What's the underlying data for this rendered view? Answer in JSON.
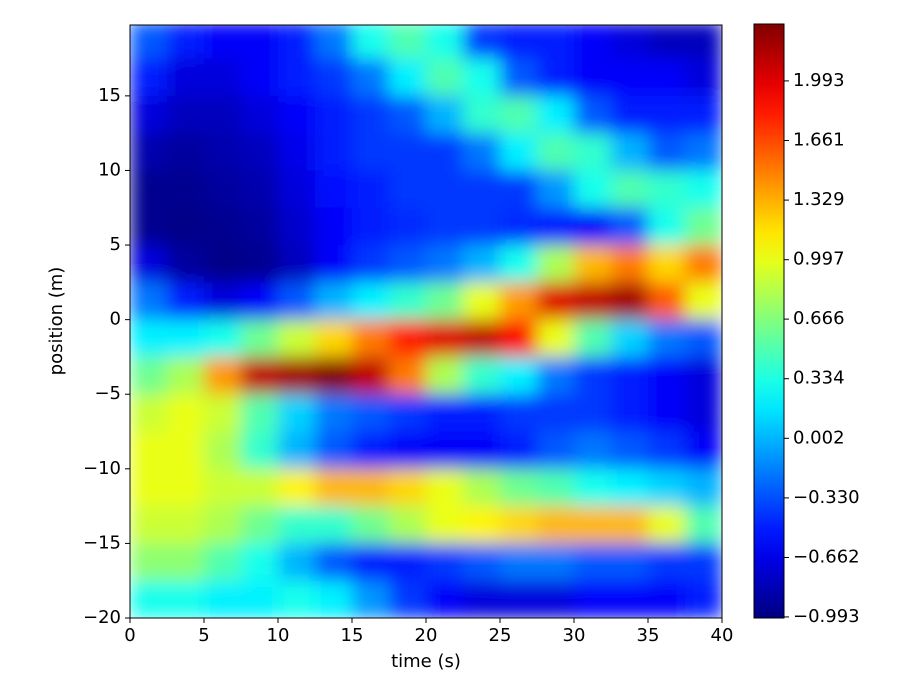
{
  "chart_data": {
    "type": "heatmap",
    "x_label": "time (s)",
    "y_label": "position (m)",
    "colormap": "jet",
    "x": [
      1.25,
      3.75,
      6.25,
      8.75,
      11.25,
      13.75,
      16.25,
      18.75,
      21.25,
      23.75,
      26.25,
      28.75,
      31.25,
      33.75,
      36.25,
      38.75
    ],
    "y": [
      18.75,
      16.25,
      13.75,
      11.25,
      8.75,
      6.25,
      3.75,
      1.25,
      -1.25,
      -3.75,
      -6.25,
      -8.75,
      -11.25,
      -13.75,
      -16.25,
      -18.75
    ],
    "values": [
      [
        -0.3,
        -0.5,
        -0.6,
        -0.6,
        -0.5,
        -0.2,
        0.3,
        0.5,
        0.3,
        -0.4,
        -0.5,
        -0.5,
        -0.6,
        -0.7,
        -0.8,
        -0.8
      ],
      [
        -0.5,
        -0.7,
        -0.7,
        -0.6,
        -0.5,
        -0.4,
        -0.2,
        0.2,
        0.5,
        0.3,
        -0.3,
        -0.5,
        -0.6,
        -0.6,
        -0.6,
        -0.7
      ],
      [
        -0.7,
        -0.8,
        -0.8,
        -0.7,
        -0.6,
        -0.5,
        -0.4,
        -0.3,
        0.0,
        0.4,
        0.5,
        0.2,
        -0.3,
        -0.5,
        -0.5,
        -0.5
      ],
      [
        -0.85,
        -0.9,
        -0.85,
        -0.8,
        -0.65,
        -0.5,
        -0.4,
        -0.4,
        -0.4,
        -0.2,
        0.2,
        0.5,
        0.4,
        0.0,
        -0.3,
        -0.2
      ],
      [
        -0.95,
        -0.95,
        -0.9,
        -0.85,
        -0.7,
        -0.55,
        -0.5,
        -0.4,
        -0.4,
        -0.4,
        -0.4,
        -0.1,
        0.3,
        0.5,
        0.4,
        0.3
      ],
      [
        -0.95,
        -0.97,
        -0.95,
        -0.9,
        -0.75,
        -0.6,
        -0.5,
        -0.45,
        -0.4,
        -0.4,
        -0.45,
        -0.5,
        -0.6,
        -0.3,
        0.3,
        0.6
      ],
      [
        -0.7,
        -0.9,
        -0.97,
        -0.95,
        -0.8,
        -0.6,
        -0.4,
        -0.3,
        -0.2,
        0.0,
        0.3,
        0.8,
        1.3,
        1.5,
        1.2,
        1.5
      ],
      [
        -0.2,
        -0.5,
        -0.7,
        -0.6,
        -0.3,
        0.0,
        0.2,
        0.4,
        0.6,
        1.0,
        1.4,
        2.0,
        2.1,
        2.2,
        1.6,
        1.0
      ],
      [
        0.2,
        0.2,
        0.3,
        0.6,
        0.9,
        1.2,
        1.5,
        1.8,
        2.0,
        2.1,
        1.9,
        1.0,
        0.5,
        0.1,
        -0.2,
        -0.3
      ],
      [
        0.6,
        0.8,
        1.4,
        2.1,
        2.2,
        2.3,
        2.1,
        1.5,
        0.8,
        0.4,
        0.2,
        -0.2,
        -0.4,
        -0.5,
        -0.6,
        -0.7
      ],
      [
        0.9,
        1.0,
        0.9,
        0.5,
        0.1,
        -0.2,
        -0.3,
        -0.4,
        -0.5,
        -0.5,
        -0.4,
        -0.4,
        -0.4,
        -0.5,
        -0.6,
        -0.7
      ],
      [
        1.0,
        1.0,
        0.8,
        0.4,
        0.0,
        -0.3,
        -0.5,
        -0.6,
        -0.6,
        -0.6,
        -0.5,
        -0.3,
        -0.2,
        -0.3,
        -0.4,
        -0.6
      ],
      [
        1.0,
        1.0,
        0.9,
        0.9,
        1.1,
        1.3,
        1.3,
        1.2,
        1.0,
        0.8,
        0.6,
        0.5,
        0.3,
        0.2,
        0.1,
        0.0
      ],
      [
        0.9,
        0.9,
        0.8,
        0.6,
        0.4,
        0.4,
        0.6,
        0.8,
        1.0,
        1.1,
        1.2,
        1.3,
        1.3,
        1.3,
        1.0,
        0.5
      ],
      [
        0.7,
        0.7,
        0.5,
        0.3,
        0.0,
        -0.3,
        -0.5,
        -0.5,
        -0.4,
        -0.3,
        -0.2,
        -0.2,
        -0.3,
        -0.3,
        -0.4,
        -0.4
      ],
      [
        0.3,
        0.3,
        0.2,
        0.2,
        0.3,
        0.2,
        -0.1,
        -0.4,
        -0.6,
        -0.7,
        -0.7,
        -0.7,
        -0.6,
        -0.6,
        -0.6,
        -0.5
      ]
    ],
    "xlim": [
      0,
      40
    ],
    "ylim": [
      -20,
      19.75
    ],
    "xticks": [
      0,
      5,
      10,
      15,
      20,
      25,
      30,
      35,
      40
    ],
    "yticks": [
      {
        "value": -20,
        "label": "−20"
      },
      {
        "value": -15,
        "label": "−15"
      },
      {
        "value": -10,
        "label": "−10"
      },
      {
        "value": -5,
        "label": "−5"
      },
      0,
      5,
      10,
      15
    ],
    "clim": [
      -0.999,
      2.31
    ],
    "cticks": [
      {
        "value": -0.993,
        "label": "−0.993"
      },
      {
        "value": -0.662,
        "label": "−0.662"
      },
      {
        "value": -0.33,
        "label": "−0.330"
      },
      {
        "value": 0.002,
        "label": "0.002"
      },
      0.334,
      0.666,
      0.997,
      1.329,
      1.661,
      1.993
    ]
  }
}
